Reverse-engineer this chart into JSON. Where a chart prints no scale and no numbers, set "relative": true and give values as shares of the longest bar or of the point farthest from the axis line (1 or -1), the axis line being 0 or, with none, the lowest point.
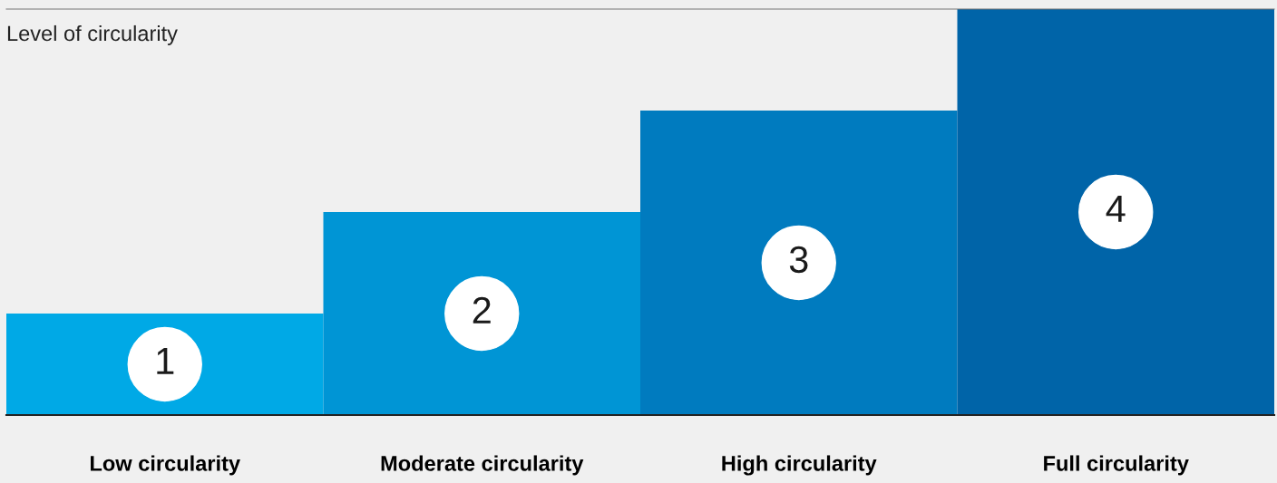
{
  "chart_data": {
    "type": "bar",
    "relative": true,
    "ylabel": "Level of circularity",
    "categories": [
      "Low circularity",
      "Moderate circularity",
      "High circularity",
      "Full circularity"
    ],
    "values": [
      0.25,
      0.5,
      0.75,
      1
    ],
    "colors": [
      "#00a9e6",
      "#0095d5",
      "#007bbf",
      "#0064a8"
    ],
    "annotations": [
      "1",
      "2",
      "3",
      "4"
    ],
    "grid": false,
    "legend": false
  }
}
